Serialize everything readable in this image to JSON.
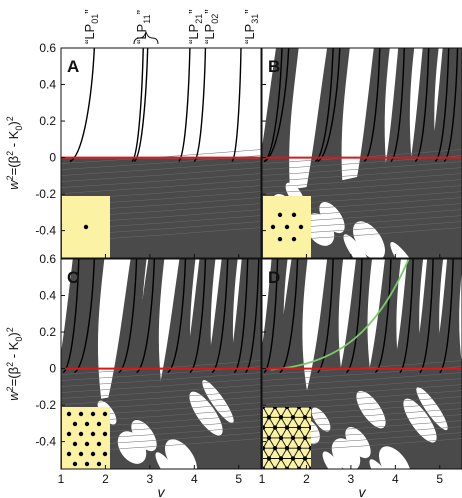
{
  "chart_data": {
    "type": "line",
    "xlabel": "v",
    "ylabel_main": "w",
    "ylabel_sup": "2",
    "ylabel_rest": "=(β",
    "ylabel_rest2": " - K",
    "ylabel_sub": "0",
    "ylabel_close": ")",
    "xlim": [
      1,
      5.5
    ],
    "ylim": [
      -0.55,
      0.6
    ],
    "xticks": [
      "1",
      "2",
      "3",
      "4",
      "5"
    ],
    "xtick_values": [
      1,
      2,
      3,
      4,
      5
    ],
    "yticks": [
      "0.6",
      "0.4",
      "0.2",
      "0",
      "-0.2",
      "-0.4"
    ],
    "ytick_values": [
      0.6,
      0.4,
      0.2,
      0,
      -0.2,
      -0.4
    ],
    "reference_line": {
      "y": 0,
      "color": "#d7191c"
    },
    "colors": {
      "band": "#4a4a4a",
      "curve": "#000000",
      "zero_line": "#d7191c",
      "green_curve": "#7cc96a",
      "inset": "#fbf2a4"
    },
    "mode_labels": [
      {
        "text": "“LP",
        "sub": "01",
        "close": "”",
        "x": 1.7
      },
      {
        "text": "“LP",
        "sub": "11",
        "close": "”",
        "x": 2.85
      },
      {
        "text": "“LP",
        "sub": "21",
        "close": "”",
        "x": 3.95
      },
      {
        "text": "“LP",
        "sub": "02",
        "close": "”",
        "x": 4.3
      },
      {
        "text": "“LP",
        "sub": "31",
        "close": "”",
        "x": 5.1
      }
    ],
    "panels": [
      {
        "letter": "A",
        "inset": "single-core",
        "curves": [
          {
            "x0": 1.2,
            "x1": 1.75,
            "y1": 0.6
          },
          {
            "x0": 2.6,
            "x1": 2.85,
            "y1": 0.6
          },
          {
            "x0": 2.65,
            "x1": 2.95,
            "y1": 0.6
          },
          {
            "x0": 3.65,
            "x1": 3.9,
            "y1": 0.6
          },
          {
            "x0": 4.0,
            "x1": 4.25,
            "y1": 0.6
          },
          {
            "x0": 4.85,
            "x1": 5.05,
            "y1": 0.6
          }
        ]
      },
      {
        "letter": "B",
        "inset": "7-core",
        "curves": [
          {
            "x0": 1.05,
            "x1": 1.45,
            "y1": 0.6
          },
          {
            "x0": 1.05,
            "x1": 1.6,
            "y1": 0.6
          },
          {
            "x0": 2.2,
            "x1": 2.6,
            "y1": 0.6
          },
          {
            "x0": 2.25,
            "x1": 2.75,
            "y1": 0.6
          },
          {
            "x0": 3.3,
            "x1": 3.65,
            "y1": 0.6
          },
          {
            "x0": 3.9,
            "x1": 4.2,
            "y1": 0.6
          },
          {
            "x0": 4.45,
            "x1": 4.75,
            "y1": 0.6
          },
          {
            "x0": 4.9,
            "x1": 5.2,
            "y1": 0.6
          },
          {
            "x0": 5.1,
            "x1": 5.4,
            "y1": 0.6
          }
        ]
      },
      {
        "letter": "C",
        "inset": "19-core",
        "curves": [
          {
            "x0": 1.05,
            "x1": 1.4,
            "y1": 0.6
          },
          {
            "x0": 1.3,
            "x1": 1.75,
            "y1": 0.6
          },
          {
            "x0": 2.3,
            "x1": 2.7,
            "y1": 0.6
          },
          {
            "x0": 2.7,
            "x1": 3.1,
            "y1": 0.6
          },
          {
            "x0": 3.4,
            "x1": 3.8,
            "y1": 0.6
          },
          {
            "x0": 3.9,
            "x1": 4.25,
            "y1": 0.6
          },
          {
            "x0": 4.4,
            "x1": 4.75,
            "y1": 0.6
          },
          {
            "x0": 4.9,
            "x1": 5.2,
            "y1": 0.6
          },
          {
            "x0": 5.15,
            "x1": 5.45,
            "y1": 0.6
          }
        ]
      },
      {
        "letter": "D",
        "inset": "hexagonal-lattice",
        "curves": [
          {
            "x0": 1.05,
            "x1": 1.35,
            "y1": 0.6
          },
          {
            "x0": 1.4,
            "x1": 1.8,
            "y1": 0.6
          },
          {
            "x0": 2.25,
            "x1": 2.6,
            "y1": 0.6
          },
          {
            "x0": 2.9,
            "x1": 3.25,
            "y1": 0.6
          },
          {
            "x0": 3.55,
            "x1": 3.9,
            "y1": 0.6
          },
          {
            "x0": 4.1,
            "x1": 4.4,
            "y1": 0.6
          },
          {
            "x0": 4.55,
            "x1": 4.85,
            "y1": 0.6
          },
          {
            "x0": 5.0,
            "x1": 5.3,
            "y1": 0.6
          }
        ],
        "green_curve": {
          "x0": 1.2,
          "x1": 4.3,
          "y1": 0.6
        }
      }
    ]
  }
}
